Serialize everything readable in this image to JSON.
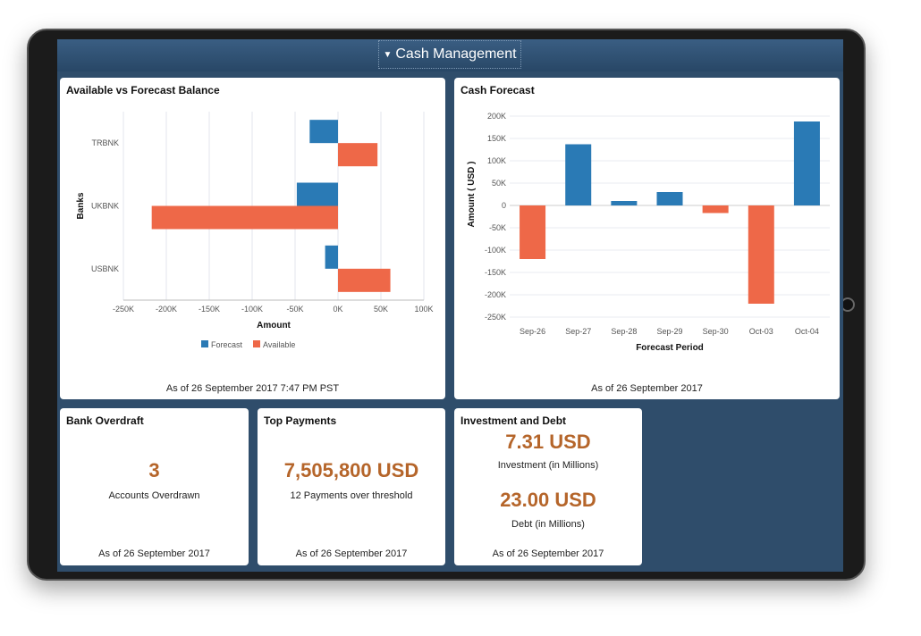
{
  "header": {
    "title": "Cash Management",
    "icon": "caret-down-icon"
  },
  "colors": {
    "forecast": "#2a7ab5",
    "available": "#ee6848",
    "value": "#b5652a"
  },
  "balance": {
    "title": "Available vs Forecast Balance",
    "footer": "As of 26 September 2017   7:47 PM PST"
  },
  "cashforecast": {
    "title": "Cash Forecast",
    "footer": "As of 26 September 2017"
  },
  "overdraft": {
    "title": "Bank Overdraft",
    "value": "3",
    "label": "Accounts Overdrawn",
    "footer": "As of 26 September 2017"
  },
  "payments": {
    "title": "Top Payments",
    "value": "7,505,800 USD",
    "label": "12 Payments over threshold",
    "footer": "As of 26 September 2017"
  },
  "invest": {
    "title": "Investment and Debt",
    "inv_value": "7.31 USD",
    "inv_label": "Investment (in Millions)",
    "debt_value": "23.00 USD",
    "debt_label": "Debt (in Millions)",
    "footer": "As of 26 September 2017"
  },
  "chart_data": [
    {
      "type": "bar",
      "orientation": "horizontal",
      "title": "Available vs Forecast Balance",
      "xlabel": "Amount",
      "ylabel": "Banks",
      "categories": [
        "TRBNK",
        "UKBNK",
        "USBNK"
      ],
      "xlim": [
        -250000,
        100000
      ],
      "xticks": [
        "-250K",
        "-200K",
        "-150K",
        "-100K",
        "-50K",
        "0K",
        "50K",
        "100K"
      ],
      "series": [
        {
          "name": "Forecast",
          "values": [
            -33000,
            -48000,
            -15000
          ]
        },
        {
          "name": "Available",
          "values": [
            46000,
            -217000,
            61000
          ]
        }
      ],
      "legend": "bottom",
      "grid": true
    },
    {
      "type": "bar",
      "title": "Cash Forecast",
      "xlabel": "Forecast Period",
      "ylabel": "Amount ( USD )",
      "categories": [
        "Sep-26",
        "Sep-27",
        "Sep-28",
        "Sep-29",
        "Sep-30",
        "Oct-03",
        "Oct-04"
      ],
      "values": [
        -120000,
        137000,
        10000,
        30000,
        -17000,
        -220000,
        188000
      ],
      "ylim": [
        -250000,
        200000
      ],
      "yticks": [
        "200K",
        "150K",
        "100K",
        "50K",
        "0",
        "-50K",
        "-100K",
        "-150K",
        "-200K",
        "-250K"
      ],
      "grid": true
    }
  ]
}
